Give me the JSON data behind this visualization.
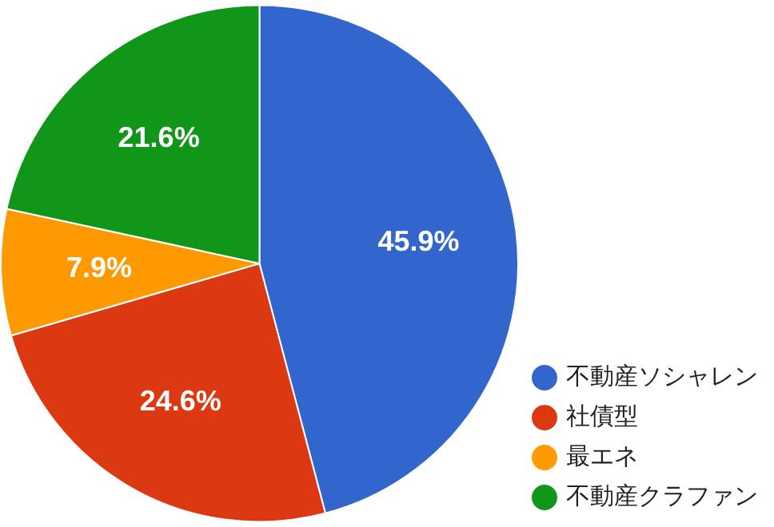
{
  "chart_data": {
    "type": "pie",
    "categories": [
      "不動産ソシャレン",
      "社債型",
      "最エネ",
      "不動産クラファン"
    ],
    "values": [
      45.9,
      24.6,
      7.9,
      21.6
    ],
    "value_labels": [
      "45.9%",
      "24.6%",
      "7.9%",
      "21.6%"
    ],
    "colors": [
      "#3366cc",
      "#dc3912",
      "#ff9900",
      "#109618"
    ],
    "legend": "bottom right"
  }
}
